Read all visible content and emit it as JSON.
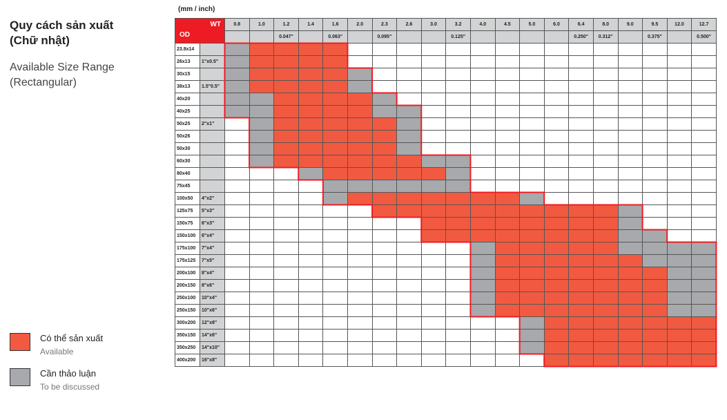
{
  "title_vn": "Quy cách sản xuất\n(Chữ nhật)",
  "title_en": "Available Size Range\n(Rectangular)",
  "unit_label": "(mm / inch)",
  "corner": {
    "wt": "WT",
    "od": "OD"
  },
  "wt_mm": [
    "0.8",
    "1.0",
    "1.2",
    "1.4",
    "1.6",
    "2.0",
    "2.3",
    "2.6",
    "3.0",
    "3.2",
    "4.0",
    "4.5",
    "5.0",
    "6.0",
    "6.4",
    "8.0",
    "9.0",
    "9.5",
    "12.0",
    "12.7"
  ],
  "wt_inch": [
    "",
    "",
    "0.047\"",
    "",
    "0.063\"",
    "",
    "0.095\"",
    "",
    "",
    "0.125\"",
    "",
    "",
    "",
    "",
    "0.250\"",
    "0.312\"",
    "",
    "0.375\"",
    "",
    "0.500\""
  ],
  "rows": [
    {
      "od": "23.8x14",
      "inch": "",
      "pattern": "GRRRR..............."
    },
    {
      "od": "26x13",
      "inch": "1\"x0.5\"",
      "pattern": "GRRRR..............."
    },
    {
      "od": "30x15",
      "inch": "",
      "pattern": "GRRRRG.............."
    },
    {
      "od": "38x13",
      "inch": "1.5\"0.5\"",
      "pattern": "GRRRRG.............."
    },
    {
      "od": "40x20",
      "inch": "",
      "pattern": "GGRRRRG............."
    },
    {
      "od": "40x25",
      "inch": "",
      "pattern": "GGRRRRGG............"
    },
    {
      "od": "50x25",
      "inch": "2\"x1\"",
      "pattern": ".GRRRRRG............"
    },
    {
      "od": "50x26",
      "inch": "",
      "pattern": ".GRRRRRG............"
    },
    {
      "od": "50x30",
      "inch": "",
      "pattern": ".GRRRRRG............"
    },
    {
      "od": "60x30",
      "inch": "",
      "pattern": ".GRRRRRRGG.........."
    },
    {
      "od": "80x40",
      "inch": "",
      "pattern": "...GRRRRRG.........."
    },
    {
      "od": "75x45",
      "inch": "",
      "pattern": "....GGGGGG.........."
    },
    {
      "od": "100x50",
      "inch": "4\"x2\"",
      "pattern": "....GRRRRRRRG......."
    },
    {
      "od": "125x75",
      "inch": "5\"x3\"",
      "pattern": "......RRRRRRRRRRG..."
    },
    {
      "od": "150x75",
      "inch": "6\"x3\"",
      "pattern": "........RRRRRRRRG..."
    },
    {
      "od": "150x100",
      "inch": "6\"x4\"",
      "pattern": "........RRRRRRRRGG.."
    },
    {
      "od": "175x100",
      "inch": "7\"x4\"",
      "pattern": "..........GRRRRRGGGG"
    },
    {
      "od": "175x125",
      "inch": "7\"x5\"",
      "pattern": "..........GRRRRRRGGG"
    },
    {
      "od": "200x100",
      "inch": "8\"x4\"",
      "pattern": "..........GRRRRRRRGG"
    },
    {
      "od": "200x150",
      "inch": "8\"x6\"",
      "pattern": "..........GRRRRRRRGG"
    },
    {
      "od": "250x100",
      "inch": "10\"x4\"",
      "pattern": "..........GRRRRRRRGG"
    },
    {
      "od": "250x150",
      "inch": "10\"x6\"",
      "pattern": "..........GRRRRRRRGG"
    },
    {
      "od": "300x200",
      "inch": "12\"x8\"",
      "pattern": "............GRRRRRRR"
    },
    {
      "od": "350x150",
      "inch": "14\"x6\"",
      "pattern": "............GRRRRRRR"
    },
    {
      "od": "350x250",
      "inch": "14\"x10\"",
      "pattern": "............GRRRRRRR"
    },
    {
      "od": "400x200",
      "inch": "16\"x8\"",
      "pattern": ".............RRRRRRR"
    }
  ],
  "legend": {
    "available_vn": "Có thể sản xuất",
    "available_en": "Available",
    "discuss_vn": "Cần thảo luận",
    "discuss_en": "To be discussed"
  },
  "colors": {
    "available": "#f15a40",
    "discuss": "#a7a9ac",
    "border_accent": "#ed1c24",
    "header_gray": "#d1d3d4"
  }
}
